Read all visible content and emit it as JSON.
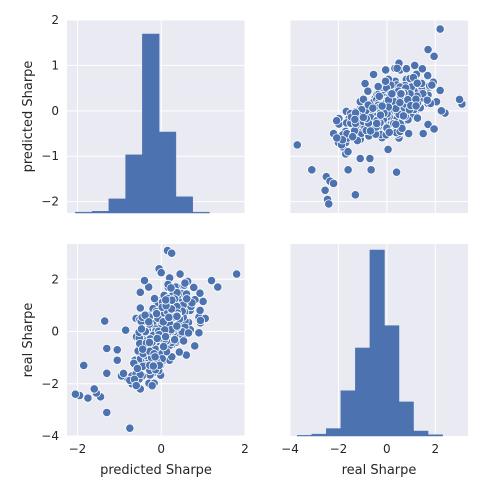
{
  "chart_data": {
    "type": "pairplot",
    "variables": [
      "predicted Sharpe",
      "real Sharpe"
    ],
    "marker_color": "#4c72b0",
    "panel_background": "#eaeaf2",
    "grid": true,
    "axes": {
      "predicted Sharpe": {
        "label": "predicted Sharpe",
        "range": [
          -2.25,
          2.0
        ],
        "ticks": [
          -2,
          -1,
          0,
          1,
          2
        ],
        "tick_labels": [
          "−2",
          "−1",
          "0",
          "1",
          "2"
        ]
      },
      "real Sharpe": {
        "label": "real Sharpe",
        "range": [
          -4.0,
          3.35
        ],
        "ticks": [
          -4,
          -2,
          0,
          2
        ],
        "tick_labels": [
          "−4",
          "−2",
          "0",
          "2"
        ]
      },
      "predicted Sharpe_bottom": {
        "ticks": [
          -2,
          0,
          2
        ],
        "tick_labels": [
          "−2",
          "0",
          "2"
        ]
      },
      "real Sharpe_bottom": {
        "ticks": [
          -4,
          -2,
          0,
          2
        ],
        "tick_labels": [
          "−4",
          "−2",
          "0",
          "2"
        ]
      }
    },
    "hist_predicted": {
      "bin_edges": [
        -2.05,
        -1.65,
        -1.25,
        -0.85,
        -0.45,
        -0.05,
        0.35,
        0.75,
        1.15
      ],
      "counts": [
        2,
        4,
        34,
        140,
        431,
        195,
        39,
        2
      ]
    },
    "hist_real": {
      "bin_edges": [
        -3.7,
        -3.1,
        -2.5,
        -1.9,
        -1.3,
        -0.7,
        -0.1,
        0.5,
        1.1,
        1.7,
        2.3,
        2.9
      ],
      "counts": [
        1,
        3,
        12,
        73,
        142,
        300,
        178,
        55,
        8,
        2,
        0
      ]
    },
    "scatter_outliers": [
      [
        1.8,
        2.2
      ],
      [
        1.35,
        1.7
      ],
      [
        1.2,
        1.95
      ],
      [
        1.0,
        1.15
      ],
      [
        0.9,
        0.55
      ],
      [
        0.9,
        -0.05
      ],
      [
        0.8,
        -0.55
      ],
      [
        0.65,
        0.35
      ],
      [
        0.55,
        1.05
      ],
      [
        0.45,
        2.2
      ],
      [
        0.3,
        1.45
      ],
      [
        0.2,
        2.05
      ],
      [
        0.15,
        3.1
      ],
      [
        0.25,
        3.0
      ],
      [
        -0.05,
        2.4
      ],
      [
        0.0,
        2.25
      ],
      [
        -0.3,
        1.7
      ],
      [
        -0.5,
        1.5
      ],
      [
        -0.5,
        0.9
      ],
      [
        -0.6,
        0.5
      ],
      [
        -0.85,
        0.05
      ],
      [
        -0.8,
        -1.8
      ],
      [
        -0.7,
        -1.7
      ],
      [
        -0.95,
        -1.7
      ],
      [
        -0.7,
        -2.0
      ],
      [
        -0.5,
        -2.2
      ],
      [
        -1.05,
        -0.7
      ],
      [
        -1.05,
        -1.1
      ],
      [
        -1.3,
        -1.6
      ],
      [
        -1.3,
        -0.65
      ],
      [
        -1.35,
        0.4
      ],
      [
        -1.45,
        -2.5
      ],
      [
        -1.55,
        -2.35
      ],
      [
        -1.6,
        -2.2
      ],
      [
        -1.75,
        -2.55
      ],
      [
        -1.95,
        -2.45
      ],
      [
        -1.85,
        -1.3
      ],
      [
        -2.05,
        -2.4
      ],
      [
        -1.3,
        -3.1
      ],
      [
        -0.75,
        -3.7
      ],
      [
        -0.3,
        -1.45
      ],
      [
        0.2,
        -1.1
      ],
      [
        0.45,
        -0.35
      ],
      [
        0.7,
        0.95
      ],
      [
        -0.15,
        -1.55
      ],
      [
        1.05,
        0.5
      ],
      [
        -0.4,
        1.95
      ],
      [
        0.6,
        -0.9
      ],
      [
        -0.55,
        -1.35
      ],
      [
        0.35,
        1.7
      ]
    ],
    "scatter_core": {
      "count": 430,
      "x_mean": 0.0,
      "x_sd": 0.3,
      "y_mean": 0.0,
      "y_sd": 0.75,
      "correlation": 0.55
    }
  }
}
